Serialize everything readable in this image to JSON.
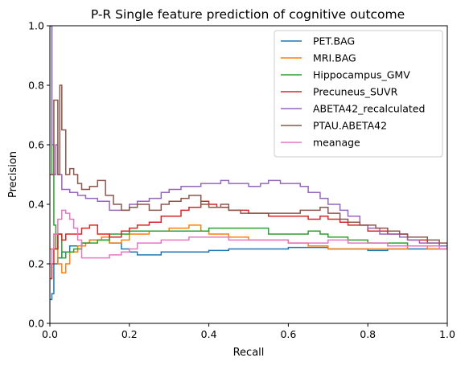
{
  "chart_data": {
    "type": "line",
    "step": true,
    "title": "P-R Single feature prediction of cognitive outcome",
    "xlabel": "Recall",
    "ylabel": "Precision",
    "xlim": [
      0,
      1
    ],
    "ylim": [
      0,
      1
    ],
    "xticks": [
      "0.0",
      "0.2",
      "0.4",
      "0.6",
      "0.8",
      "1.0"
    ],
    "yticks": [
      "0.0",
      "0.2",
      "0.4",
      "0.6",
      "0.8",
      "1.0"
    ],
    "grid": false,
    "legend_position": "upper right",
    "series": [
      {
        "name": "PET.BAG",
        "color": "#1f77b4",
        "points": [
          [
            0,
            0.08
          ],
          [
            0.005,
            0.1
          ],
          [
            0.01,
            0.2
          ],
          [
            0.02,
            0.22
          ],
          [
            0.03,
            0.24
          ],
          [
            0.05,
            0.26
          ],
          [
            0.08,
            0.27
          ],
          [
            0.1,
            0.28
          ],
          [
            0.12,
            0.28
          ],
          [
            0.15,
            0.27
          ],
          [
            0.18,
            0.25
          ],
          [
            0.2,
            0.24
          ],
          [
            0.22,
            0.23
          ],
          [
            0.25,
            0.23
          ],
          [
            0.28,
            0.24
          ],
          [
            0.3,
            0.24
          ],
          [
            0.35,
            0.24
          ],
          [
            0.4,
            0.245
          ],
          [
            0.45,
            0.25
          ],
          [
            0.5,
            0.25
          ],
          [
            0.55,
            0.25
          ],
          [
            0.6,
            0.255
          ],
          [
            0.65,
            0.255
          ],
          [
            0.7,
            0.25
          ],
          [
            0.75,
            0.25
          ],
          [
            0.8,
            0.245
          ],
          [
            0.85,
            0.25
          ],
          [
            0.9,
            0.25
          ],
          [
            0.95,
            0.25
          ],
          [
            1.0,
            0.25
          ]
        ]
      },
      {
        "name": "MRI.BAG",
        "color": "#ff7f0e",
        "points": [
          [
            0,
            0.25
          ],
          [
            0.01,
            0.3
          ],
          [
            0.02,
            0.2
          ],
          [
            0.03,
            0.17
          ],
          [
            0.04,
            0.2
          ],
          [
            0.05,
            0.24
          ],
          [
            0.07,
            0.26
          ],
          [
            0.09,
            0.27
          ],
          [
            0.1,
            0.28
          ],
          [
            0.13,
            0.29
          ],
          [
            0.15,
            0.27
          ],
          [
            0.18,
            0.28
          ],
          [
            0.2,
            0.3
          ],
          [
            0.25,
            0.31
          ],
          [
            0.3,
            0.32
          ],
          [
            0.33,
            0.32
          ],
          [
            0.35,
            0.33
          ],
          [
            0.38,
            0.31
          ],
          [
            0.4,
            0.3
          ],
          [
            0.43,
            0.3
          ],
          [
            0.45,
            0.29
          ],
          [
            0.5,
            0.28
          ],
          [
            0.55,
            0.28
          ],
          [
            0.6,
            0.27
          ],
          [
            0.65,
            0.26
          ],
          [
            0.7,
            0.25
          ],
          [
            0.75,
            0.25
          ],
          [
            0.8,
            0.25
          ],
          [
            0.85,
            0.25
          ],
          [
            0.9,
            0.26
          ],
          [
            0.95,
            0.25
          ],
          [
            1.0,
            0.25
          ]
        ]
      },
      {
        "name": "Hippocampus_GMV",
        "color": "#2ca02c",
        "points": [
          [
            0,
            1.0
          ],
          [
            0.005,
            0.5
          ],
          [
            0.01,
            0.33
          ],
          [
            0.015,
            0.25
          ],
          [
            0.02,
            0.3
          ],
          [
            0.03,
            0.22
          ],
          [
            0.04,
            0.24
          ],
          [
            0.06,
            0.25
          ],
          [
            0.08,
            0.27
          ],
          [
            0.1,
            0.27
          ],
          [
            0.12,
            0.28
          ],
          [
            0.15,
            0.3
          ],
          [
            0.18,
            0.3
          ],
          [
            0.2,
            0.31
          ],
          [
            0.25,
            0.31
          ],
          [
            0.3,
            0.31
          ],
          [
            0.35,
            0.31
          ],
          [
            0.4,
            0.32
          ],
          [
            0.45,
            0.32
          ],
          [
            0.5,
            0.32
          ],
          [
            0.55,
            0.3
          ],
          [
            0.6,
            0.3
          ],
          [
            0.65,
            0.31
          ],
          [
            0.68,
            0.3
          ],
          [
            0.7,
            0.29
          ],
          [
            0.75,
            0.28
          ],
          [
            0.8,
            0.27
          ],
          [
            0.85,
            0.27
          ],
          [
            0.9,
            0.26
          ],
          [
            0.95,
            0.26
          ],
          [
            1.0,
            0.25
          ]
        ]
      },
      {
        "name": "Precuneus_SUVR",
        "color": "#d62728",
        "points": [
          [
            0,
            0.15
          ],
          [
            0.005,
            0.2
          ],
          [
            0.01,
            0.25
          ],
          [
            0.02,
            0.3
          ],
          [
            0.03,
            0.28
          ],
          [
            0.04,
            0.3
          ],
          [
            0.06,
            0.3
          ],
          [
            0.08,
            0.32
          ],
          [
            0.1,
            0.33
          ],
          [
            0.12,
            0.3
          ],
          [
            0.15,
            0.29
          ],
          [
            0.18,
            0.31
          ],
          [
            0.2,
            0.32
          ],
          [
            0.22,
            0.33
          ],
          [
            0.25,
            0.34
          ],
          [
            0.28,
            0.36
          ],
          [
            0.3,
            0.36
          ],
          [
            0.33,
            0.38
          ],
          [
            0.35,
            0.39
          ],
          [
            0.38,
            0.41
          ],
          [
            0.4,
            0.4
          ],
          [
            0.42,
            0.39
          ],
          [
            0.45,
            0.38
          ],
          [
            0.5,
            0.37
          ],
          [
            0.55,
            0.36
          ],
          [
            0.6,
            0.36
          ],
          [
            0.65,
            0.35
          ],
          [
            0.68,
            0.36
          ],
          [
            0.7,
            0.35
          ],
          [
            0.73,
            0.34
          ],
          [
            0.75,
            0.33
          ],
          [
            0.8,
            0.31
          ],
          [
            0.85,
            0.3
          ],
          [
            0.9,
            0.28
          ],
          [
            0.95,
            0.27
          ],
          [
            0.98,
            0.26
          ],
          [
            1.0,
            0.25
          ]
        ]
      },
      {
        "name": "ABETA42_recalculated",
        "color": "#9467bd",
        "points": [
          [
            0,
            1.0
          ],
          [
            0.005,
            0.6
          ],
          [
            0.01,
            0.5
          ],
          [
            0.015,
            0.6
          ],
          [
            0.02,
            0.5
          ],
          [
            0.03,
            0.45
          ],
          [
            0.05,
            0.44
          ],
          [
            0.07,
            0.43
          ],
          [
            0.09,
            0.42
          ],
          [
            0.12,
            0.41
          ],
          [
            0.15,
            0.38
          ],
          [
            0.18,
            0.38
          ],
          [
            0.2,
            0.4
          ],
          [
            0.22,
            0.41
          ],
          [
            0.25,
            0.42
          ],
          [
            0.28,
            0.44
          ],
          [
            0.3,
            0.45
          ],
          [
            0.33,
            0.46
          ],
          [
            0.35,
            0.46
          ],
          [
            0.38,
            0.47
          ],
          [
            0.4,
            0.47
          ],
          [
            0.43,
            0.48
          ],
          [
            0.45,
            0.47
          ],
          [
            0.48,
            0.47
          ],
          [
            0.5,
            0.46
          ],
          [
            0.53,
            0.47
          ],
          [
            0.55,
            0.48
          ],
          [
            0.58,
            0.47
          ],
          [
            0.6,
            0.47
          ],
          [
            0.63,
            0.46
          ],
          [
            0.65,
            0.44
          ],
          [
            0.68,
            0.42
          ],
          [
            0.7,
            0.4
          ],
          [
            0.73,
            0.38
          ],
          [
            0.75,
            0.36
          ],
          [
            0.78,
            0.33
          ],
          [
            0.8,
            0.32
          ],
          [
            0.83,
            0.3
          ],
          [
            0.85,
            0.3
          ],
          [
            0.88,
            0.29
          ],
          [
            0.9,
            0.28
          ],
          [
            0.93,
            0.27
          ],
          [
            0.95,
            0.27
          ],
          [
            0.98,
            0.26
          ],
          [
            1.0,
            0.25
          ]
        ]
      },
      {
        "name": "PTAU.ABETA42",
        "color": "#8c564b",
        "points": [
          [
            0,
            0.5
          ],
          [
            0.01,
            0.75
          ],
          [
            0.02,
            0.5
          ],
          [
            0.025,
            0.8
          ],
          [
            0.03,
            0.65
          ],
          [
            0.04,
            0.5
          ],
          [
            0.05,
            0.52
          ],
          [
            0.06,
            0.5
          ],
          [
            0.07,
            0.47
          ],
          [
            0.08,
            0.45
          ],
          [
            0.1,
            0.46
          ],
          [
            0.12,
            0.48
          ],
          [
            0.14,
            0.43
          ],
          [
            0.16,
            0.4
          ],
          [
            0.18,
            0.38
          ],
          [
            0.2,
            0.39
          ],
          [
            0.22,
            0.4
          ],
          [
            0.25,
            0.38
          ],
          [
            0.28,
            0.4
          ],
          [
            0.3,
            0.41
          ],
          [
            0.33,
            0.42
          ],
          [
            0.35,
            0.43
          ],
          [
            0.38,
            0.4
          ],
          [
            0.4,
            0.39
          ],
          [
            0.43,
            0.4
          ],
          [
            0.45,
            0.38
          ],
          [
            0.48,
            0.37
          ],
          [
            0.5,
            0.37
          ],
          [
            0.55,
            0.37
          ],
          [
            0.6,
            0.37
          ],
          [
            0.63,
            0.38
          ],
          [
            0.65,
            0.38
          ],
          [
            0.68,
            0.39
          ],
          [
            0.7,
            0.37
          ],
          [
            0.73,
            0.35
          ],
          [
            0.75,
            0.34
          ],
          [
            0.78,
            0.33
          ],
          [
            0.8,
            0.33
          ],
          [
            0.82,
            0.32
          ],
          [
            0.85,
            0.31
          ],
          [
            0.88,
            0.3
          ],
          [
            0.9,
            0.29
          ],
          [
            0.93,
            0.29
          ],
          [
            0.95,
            0.28
          ],
          [
            0.98,
            0.27
          ],
          [
            1.0,
            0.26
          ]
        ]
      },
      {
        "name": "meanage",
        "color": "#e377c2",
        "points": [
          [
            0,
            0.2
          ],
          [
            0.005,
            0.25
          ],
          [
            0.01,
            0.3
          ],
          [
            0.02,
            0.35
          ],
          [
            0.03,
            0.38
          ],
          [
            0.04,
            0.37
          ],
          [
            0.05,
            0.35
          ],
          [
            0.06,
            0.32
          ],
          [
            0.07,
            0.28
          ],
          [
            0.08,
            0.22
          ],
          [
            0.1,
            0.22
          ],
          [
            0.12,
            0.22
          ],
          [
            0.15,
            0.23
          ],
          [
            0.18,
            0.24
          ],
          [
            0.2,
            0.25
          ],
          [
            0.22,
            0.27
          ],
          [
            0.25,
            0.27
          ],
          [
            0.28,
            0.28
          ],
          [
            0.3,
            0.28
          ],
          [
            0.33,
            0.28
          ],
          [
            0.35,
            0.29
          ],
          [
            0.38,
            0.29
          ],
          [
            0.4,
            0.29
          ],
          [
            0.45,
            0.28
          ],
          [
            0.5,
            0.28
          ],
          [
            0.55,
            0.28
          ],
          [
            0.6,
            0.27
          ],
          [
            0.65,
            0.27
          ],
          [
            0.7,
            0.28
          ],
          [
            0.75,
            0.27
          ],
          [
            0.8,
            0.27
          ],
          [
            0.85,
            0.26
          ],
          [
            0.9,
            0.26
          ],
          [
            0.95,
            0.26
          ],
          [
            0.98,
            0.25
          ],
          [
            1.0,
            0.25
          ]
        ]
      }
    ]
  }
}
